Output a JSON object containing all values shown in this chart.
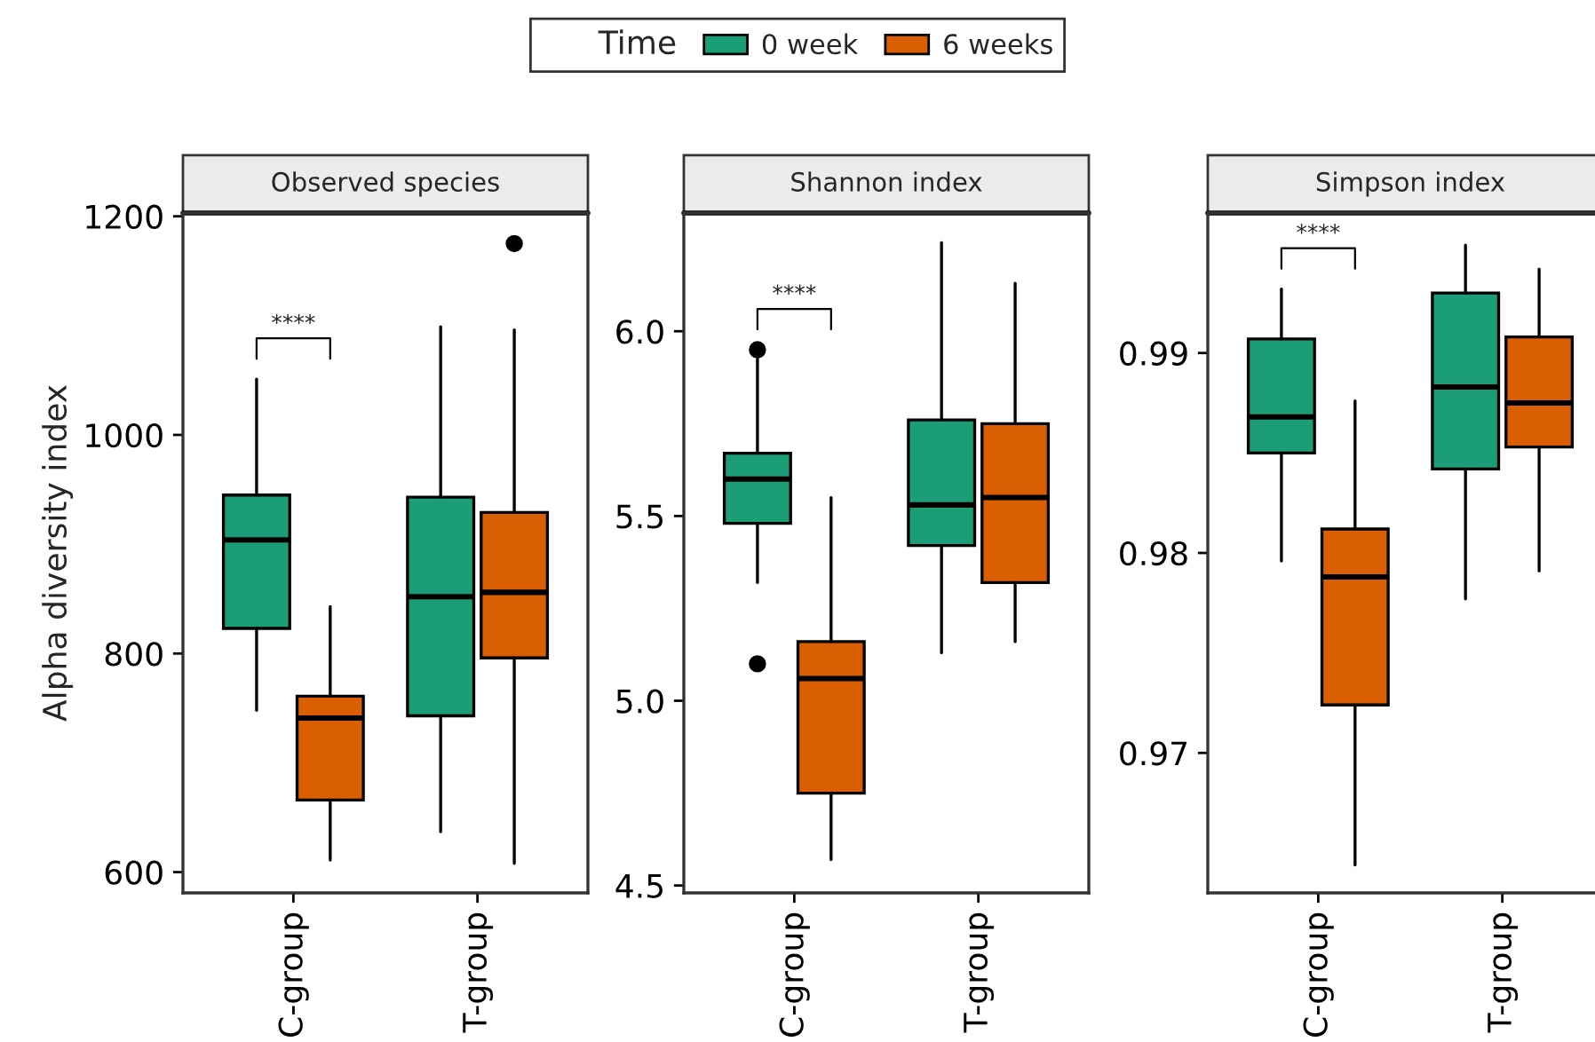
{
  "chart_data": [
    {
      "type": "box",
      "title": "Observed species",
      "ylabel": "Alpha diversity index",
      "legend_title": "Time",
      "legend": "top",
      "categories": [
        "C-group",
        "T-group"
      ],
      "ylim": [
        581,
        1203
      ],
      "yticks": [
        600,
        800,
        1000,
        1200
      ],
      "series": [
        {
          "name": "0 week",
          "color": "#1b9e77",
          "boxes": [
            {
              "low": 748,
              "q1": 823,
              "median": 904,
              "q3": 945,
              "high": 1051
            },
            {
              "low": 637,
              "q1": 743,
              "median": 852,
              "q3": 943,
              "high": 1099
            }
          ]
        },
        {
          "name": "6 weeks",
          "color": "#d95f02",
          "boxes": [
            {
              "low": 611,
              "q1": 666,
              "median": 741,
              "q3": 761,
              "high": 843
            },
            {
              "low": 608,
              "q1": 796,
              "median": 856,
              "q3": 929,
              "high": 1096,
              "outliers": [
                1175
              ]
            }
          ]
        }
      ],
      "annotations": [
        "****"
      ]
    },
    {
      "type": "box",
      "title": "Shannon index",
      "categories": [
        "C-group",
        "T-group"
      ],
      "ylim": [
        4.48,
        6.32
      ],
      "yticks": [
        4.5,
        {
          "value": 5,
          "label": "5.0"
        },
        5.5,
        {
          "value": 6,
          "label": "6.0"
        }
      ],
      "series": [
        {
          "color": "#1b9e77",
          "boxes": [
            {
              "low": 5.32,
              "q1": 5.48,
              "median": 5.6,
              "q3": 5.67,
              "high": 5.93,
              "outliers": [
                5.95,
                5.1
              ]
            },
            {
              "low": 5.13,
              "q1": 5.42,
              "median": 5.53,
              "q3": 5.76,
              "high": 6.24
            }
          ]
        },
        {
          "color": "#d95f02",
          "boxes": [
            {
              "low": 4.57,
              "q1": 4.75,
              "median": 5.06,
              "q3": 5.16,
              "high": 5.55
            },
            {
              "low": 5.16,
              "q1": 5.32,
              "median": 5.55,
              "q3": 5.75,
              "high": 6.13
            }
          ]
        }
      ],
      "annotations": [
        "****"
      ]
    },
    {
      "type": "box",
      "title": "Simpson index",
      "categories": [
        "C-group",
        "T-group"
      ],
      "ylim": [
        0.963,
        0.997
      ],
      "yticks": [
        0.97,
        0.98,
        0.99
      ],
      "series": [
        {
          "color": "#1b9e77",
          "boxes": [
            {
              "low": 0.9796,
              "q1": 0.985,
              "median": 0.9868,
              "q3": 0.9907,
              "high": 0.9932
            },
            {
              "low": 0.9777,
              "q1": 0.9842,
              "median": 0.9883,
              "q3": 0.993,
              "high": 0.9954
            }
          ]
        },
        {
          "color": "#d95f02",
          "boxes": [
            {
              "low": 0.9644,
              "q1": 0.9724,
              "median": 0.9788,
              "q3": 0.9812,
              "high": 0.9876
            },
            {
              "low": 0.9791,
              "q1": 0.9853,
              "median": 0.9875,
              "q3": 0.9908,
              "high": 0.9942
            }
          ]
        }
      ],
      "annotations": [
        "****"
      ]
    }
  ]
}
